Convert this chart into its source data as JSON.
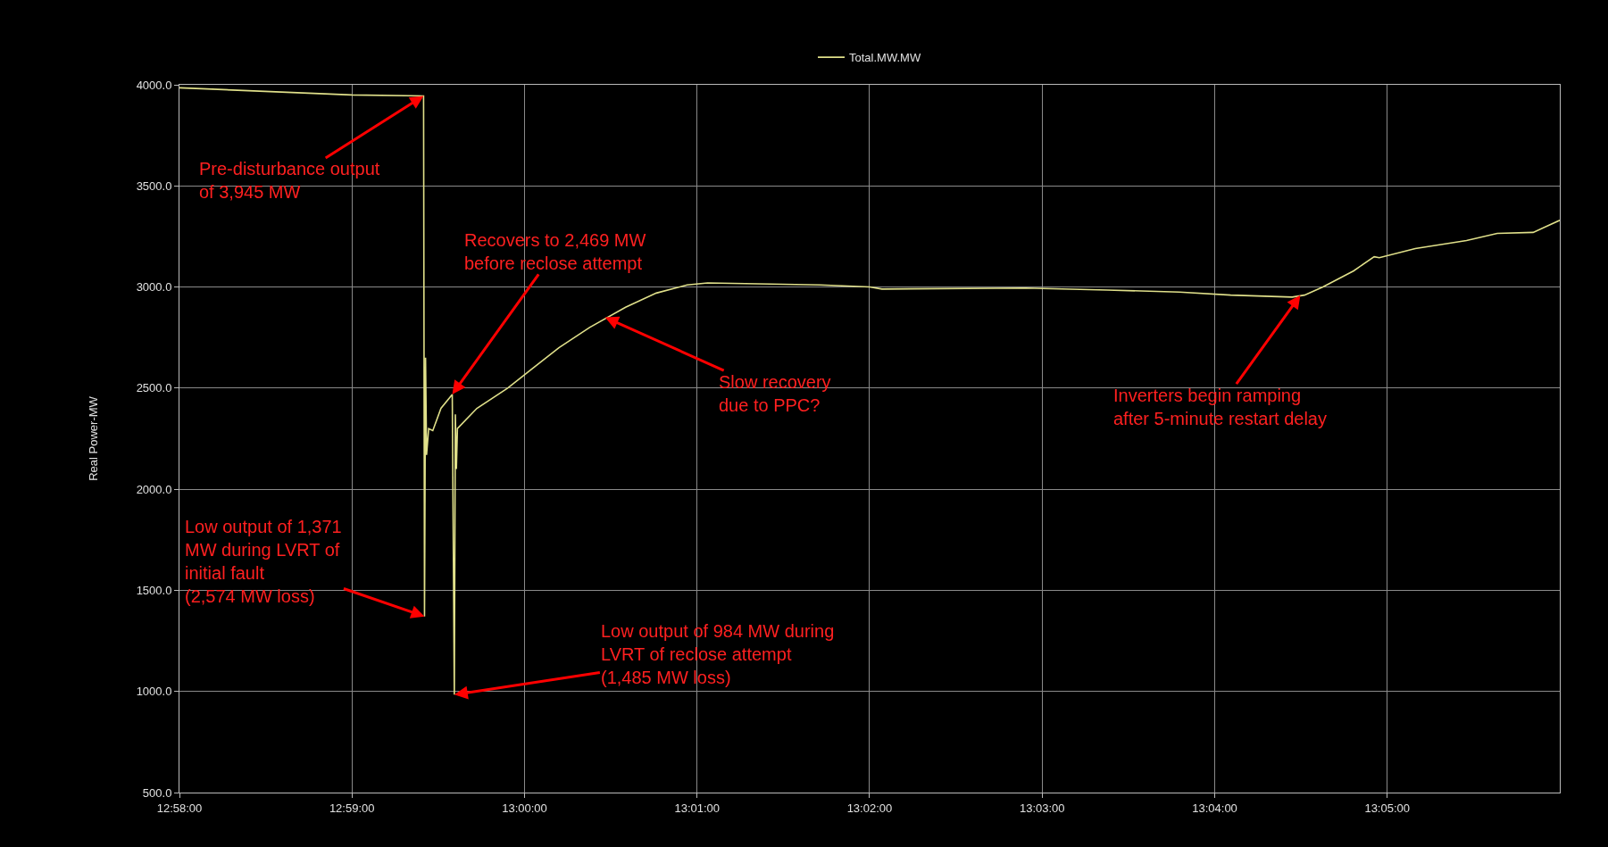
{
  "chart_data": {
    "type": "line",
    "ylabel": "Real Power-MW",
    "legend": "top",
    "x": [
      12.96667,
      12.98331,
      12.99025,
      12.99034,
      12.99044,
      12.99054,
      12.99074,
      12.99114,
      12.99193,
      12.99302,
      12.99322,
      12.99332,
      12.99342,
      12.99352,
      12.9954,
      12.99837,
      13.00085,
      13.00332,
      13.00629,
      13.00976,
      13.01273,
      13.0157,
      13.01769,
      13.02858,
      13.03334,
      13.03453,
      13.04839,
      13.05632,
      13.06325,
      13.06821,
      13.07415,
      13.07534,
      13.07712,
      13.08009,
      13.08207,
      13.08257,
      13.08604,
      13.09099,
      13.09396,
      13.09743,
      13.1
    ],
    "series": [
      {
        "name": "Total.MW.MW",
        "color": "#e0e08a",
        "values": [
          3985,
          3950,
          3945,
          1371,
          2650,
          2170,
          2300,
          2290,
          2400,
          2469,
          984,
          2370,
          2100,
          2300,
          2400,
          2500,
          2600,
          2700,
          2800,
          2900,
          2970,
          3010,
          3020,
          3010,
          3000,
          2990,
          2995,
          2985,
          2975,
          2960,
          2950,
          2960,
          3000,
          3080,
          3150,
          3145,
          3190,
          3230,
          3265,
          3270,
          3330
        ]
      }
    ],
    "xlim": [
      12.96667,
      13.1
    ],
    "xticks": [
      {
        "value": 12.96667,
        "label": "12:58:00"
      },
      {
        "value": 12.98333,
        "label": "12:59:00"
      },
      {
        "value": 13.0,
        "label": "13:00:00"
      },
      {
        "value": 13.01667,
        "label": "13:01:00"
      },
      {
        "value": 13.03333,
        "label": "13:02:00"
      },
      {
        "value": 13.05,
        "label": "13:03:00"
      },
      {
        "value": 13.06667,
        "label": "13:04:00"
      },
      {
        "value": 13.08333,
        "label": "13:05:00"
      }
    ],
    "ylim": [
      500,
      4000
    ],
    "yticks": [
      {
        "value": 500,
        "label": "500.0"
      },
      {
        "value": 1000,
        "label": "1000.0"
      },
      {
        "value": 1500,
        "label": "1500.0"
      },
      {
        "value": 2000,
        "label": "2000.0"
      },
      {
        "value": 2500,
        "label": "2500.0"
      },
      {
        "value": 3000,
        "label": "3000.0"
      },
      {
        "value": 3500,
        "label": "3500.0"
      },
      {
        "value": 4000,
        "label": "4000.0"
      }
    ],
    "grid": true,
    "marker": "none",
    "line_style": "solid",
    "annotations": [
      {
        "text": "Pre-disturbance output\nof 3,945 MW",
        "x": 12.99025,
        "y": 3945
      },
      {
        "text": "Recovers to 2,469 MW\nbefore reclose attempt",
        "x": 12.99302,
        "y": 2469
      },
      {
        "text": "Slow recovery\ndue to PPC?",
        "x": 13.00778,
        "y": 2850
      },
      {
        "text": "Inverters begin ramping\nafter 5-minute restart delay",
        "x": 13.07494,
        "y": 2960
      },
      {
        "text": "Low output of 1,371\nMW during LVRT of\ninitial fault\n(2,574 MW loss)",
        "x": 12.99034,
        "y": 1371
      },
      {
        "text": "Low output of 984 MW during\nLVRT of reclose attempt\n(1,485 MW loss)",
        "x": 12.99322,
        "y": 984
      }
    ]
  }
}
